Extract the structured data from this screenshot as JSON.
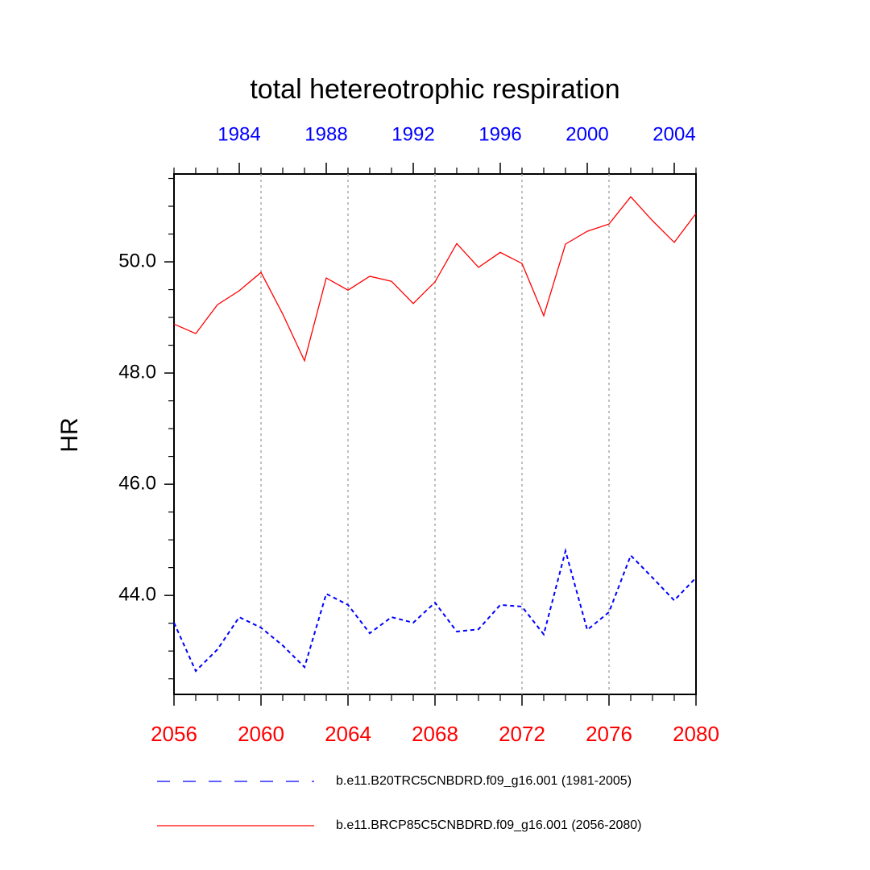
{
  "chart_data": {
    "type": "line",
    "title": "total hetereotrophic respiration",
    "y_label": "HR",
    "xlim": [
      2056,
      2080
    ],
    "xticks": [
      2056,
      2060,
      2064,
      2068,
      2072,
      2076,
      2080
    ],
    "xtick_color": "red",
    "xminorticks": [
      2057,
      2058,
      2059,
      2061,
      2062,
      2063,
      2065,
      2066,
      2067,
      2069,
      2070,
      2071,
      2073,
      2074,
      2075,
      2077,
      2078,
      2079
    ],
    "x2lim": [
      1981,
      2005
    ],
    "x2ticks": [
      1984,
      1988,
      1992,
      1996,
      2000,
      2004
    ],
    "x2tick_color": "blue",
    "x2minorticks": [
      1981,
      1982,
      1983,
      1985,
      1986,
      1987,
      1989,
      1990,
      1991,
      1993,
      1994,
      1995,
      1997,
      1998,
      1999,
      2001,
      2002,
      2003,
      2005
    ],
    "ylim": [
      42.22,
      51.58
    ],
    "yticks": [
      {
        "value": 44,
        "label": "44.0"
      },
      {
        "value": 46,
        "label": "46.0"
      },
      {
        "value": 48,
        "label": "48.0"
      },
      {
        "value": 50,
        "label": "50.0"
      }
    ],
    "yminorticks": [
      42.5,
      43,
      43.5,
      44.5,
      45,
      45.5,
      46.5,
      47,
      47.5,
      48.5,
      49,
      49.5,
      50.5,
      51,
      51.5
    ],
    "grid": true,
    "series": [
      {
        "name": "b.e11.B20TRC5CNBDRD.f09_g16.001 (1981-2005)",
        "color": "blue",
        "dash": true,
        "axis": "x2",
        "x": [
          1981,
          1982,
          1983,
          1984,
          1985,
          1986,
          1987,
          1988,
          1989,
          1990,
          1991,
          1992,
          1993,
          1994,
          1995,
          1996,
          1997,
          1998,
          1999,
          2000,
          2001,
          2002,
          2003,
          2004,
          2005
        ],
        "values": [
          43.51,
          42.64,
          43.03,
          43.61,
          43.42,
          43.1,
          42.71,
          44.03,
          43.83,
          43.32,
          43.61,
          43.51,
          43.87,
          43.35,
          43.39,
          43.83,
          43.8,
          43.3,
          44.8,
          43.38,
          43.7,
          44.72,
          44.32,
          43.91,
          44.32
        ]
      },
      {
        "name": "b.e11.BRCP85C5CNBDRD.f09_g16.001 (2056-2080)",
        "color": "red",
        "dash": false,
        "x": [
          2056,
          2057,
          2058,
          2059,
          2060,
          2061,
          2062,
          2063,
          2064,
          2065,
          2066,
          2067,
          2068,
          2069,
          2070,
          2071,
          2072,
          2073,
          2074,
          2075,
          2076,
          2077,
          2078,
          2079,
          2080
        ],
        "values": [
          48.88,
          48.71,
          49.23,
          49.48,
          49.81,
          49.06,
          48.22,
          49.71,
          49.49,
          49.74,
          49.65,
          49.25,
          49.64,
          50.33,
          49.9,
          50.17,
          49.97,
          49.03,
          50.32,
          50.55,
          50.68,
          51.17,
          50.74,
          50.35,
          50.87
        ]
      }
    ]
  }
}
